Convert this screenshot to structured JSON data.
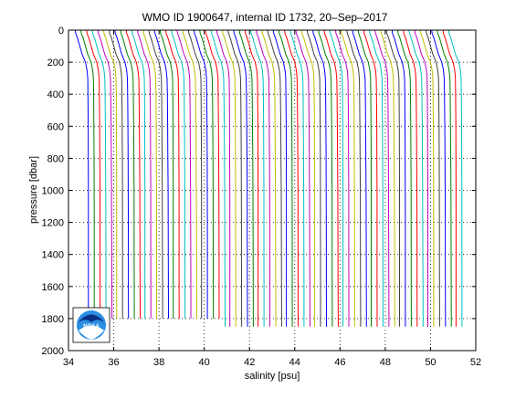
{
  "chart_data": {
    "type": "line",
    "title": "WMO ID 1900647, internal ID 1732, 20–Sep–2017",
    "xlabel": "salinity [psu]",
    "ylabel": "pressure [dbar]",
    "xlim": [
      34,
      52
    ],
    "ylim": [
      2000,
      0
    ],
    "y_reversed": true,
    "x_ticks": [
      "34",
      "36",
      "38",
      "40",
      "42",
      "44",
      "46",
      "48",
      "50",
      "52"
    ],
    "y_ticks": [
      "0",
      "200",
      "400",
      "600",
      "800",
      "1000",
      "1200",
      "1400",
      "1600",
      "1800",
      "2000"
    ],
    "grid": "dotted",
    "series_colors": [
      "#0000ff",
      "#008000",
      "#ff0000",
      "#00bfbf",
      "#bf00bf",
      "#bfbf00",
      "#404040"
    ],
    "profile_count": 67,
    "profile_offset_psu": 0.25,
    "profile_shape": {
      "pressure": [
        0,
        20,
        50,
        100,
        150,
        200,
        250,
        300,
        400,
        600,
        800,
        1000,
        1200,
        1400,
        1600,
        1800
      ],
      "salinity": [
        34.3,
        34.32,
        34.4,
        34.5,
        34.6,
        34.75,
        34.82,
        34.85,
        34.86,
        34.87,
        34.875,
        34.88,
        34.88,
        34.88,
        34.88,
        34.88
      ]
    },
    "series": [
      {
        "values": [
          [
            34.3,
            0
          ],
          [
            34.4,
            50
          ],
          [
            34.6,
            150
          ],
          [
            34.82,
            250
          ],
          [
            34.88,
            400
          ],
          [
            34.9,
            1000
          ],
          [
            34.9,
            1810
          ]
        ]
      }
    ]
  },
  "logo": {
    "text": "NOAA"
  }
}
